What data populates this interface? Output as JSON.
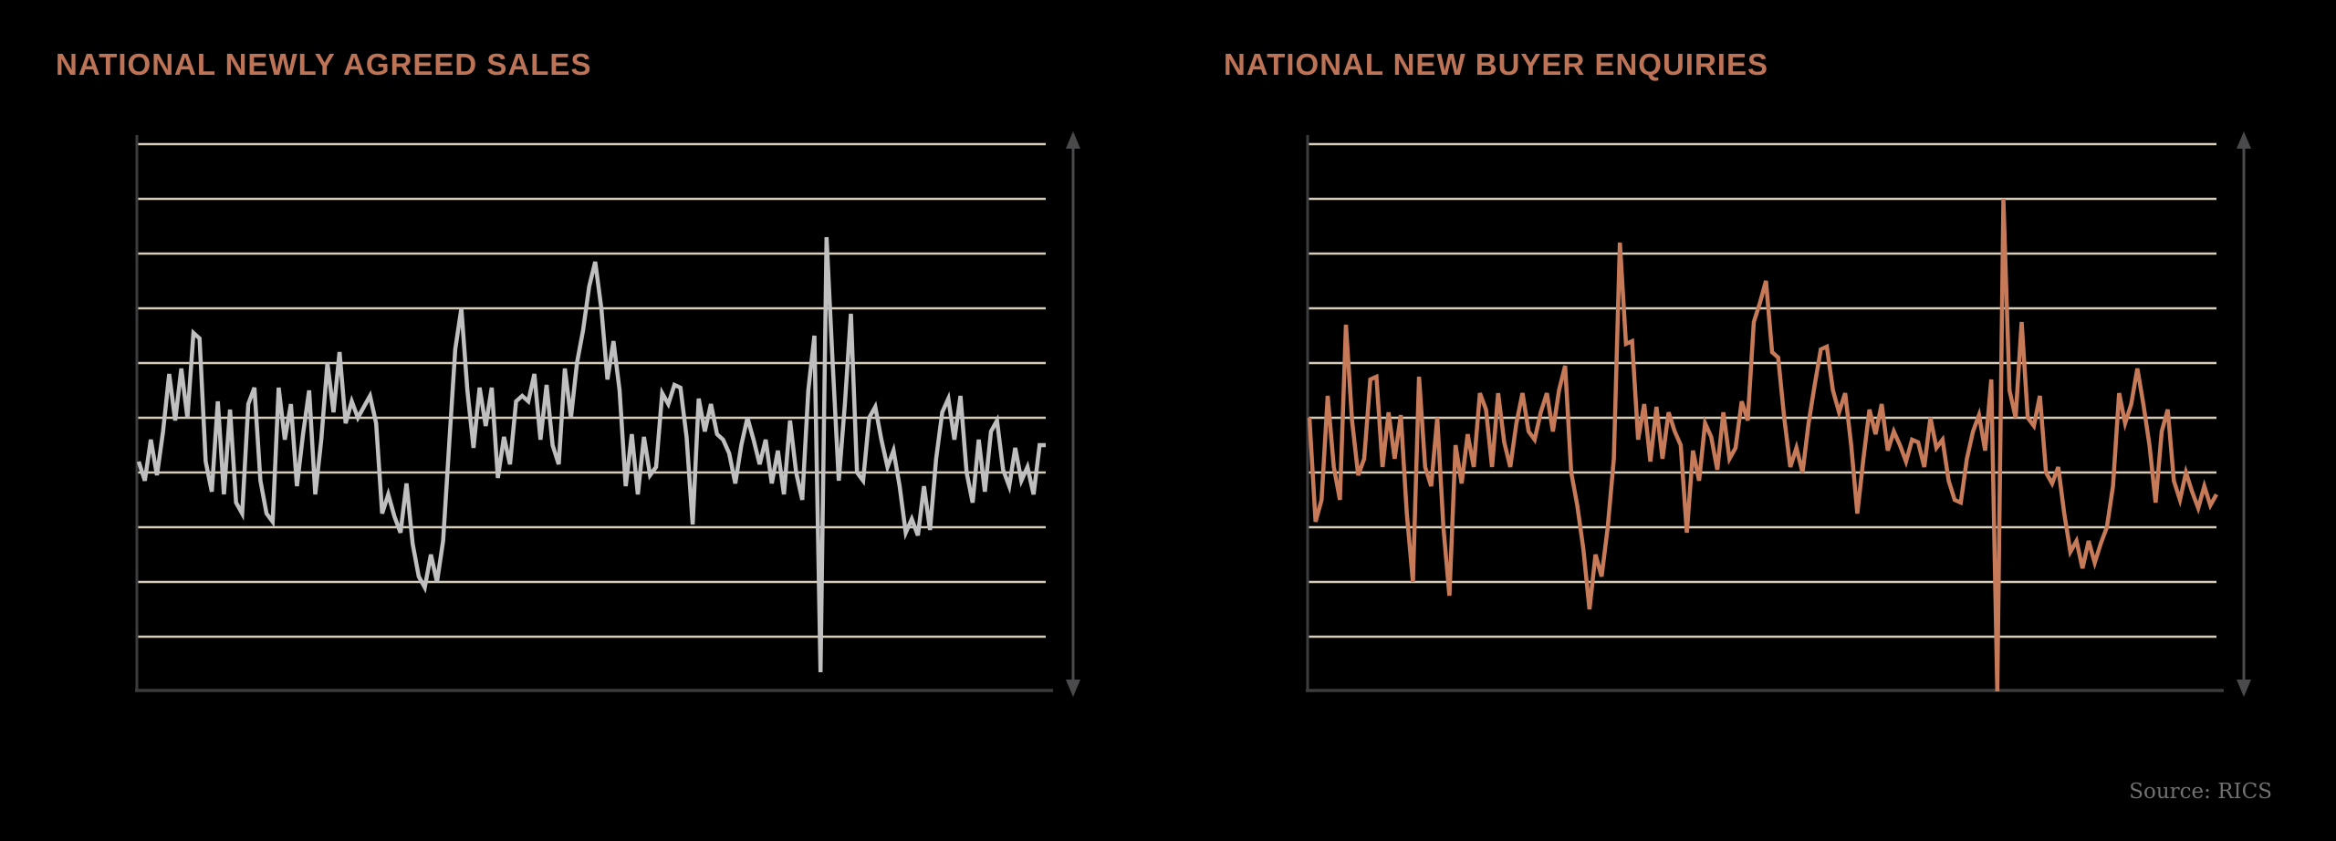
{
  "page": {
    "background": "#000000",
    "source_note": "Source: RICS"
  },
  "colors": {
    "title_text": "#bd7356",
    "gridline": "#d5ccba",
    "axis": "#3c3c3e",
    "arrow": "#4a4a4d",
    "sales_line": "#bfbfbf",
    "enquiries_line": "#c67a58",
    "source_text": "#717171"
  },
  "chart_data": [
    {
      "type": "line",
      "title": "NATIONAL NEWLY AGREED SALES",
      "xlabel": "",
      "ylabel": "",
      "axis_tick_labels_visible": false,
      "legend": "none",
      "grid": "horizontal gridlines only",
      "right_arrow_icon": "double-headed-vertical-arrow",
      "ylim_assumed": [
        -80,
        120
      ],
      "gridline_values_assumed": [
        120,
        100,
        80,
        60,
        40,
        20,
        0,
        -20,
        -40,
        -60
      ],
      "series": [
        {
          "name": "newly-agreed-sales-net-balance",
          "color": "#bfbfbf",
          "values": [
            4,
            -3,
            12,
            -1,
            15,
            36,
            19,
            38,
            20,
            51,
            49,
            4,
            -7,
            26,
            -8,
            23,
            -11,
            -15,
            25,
            31,
            -3,
            -15,
            -18,
            31,
            12,
            25,
            -5,
            14,
            30,
            -8,
            12,
            40,
            22,
            44,
            18,
            26,
            20,
            24,
            28,
            18,
            -15,
            -8,
            -16,
            -22,
            -4,
            -26,
            -38,
            -42,
            -30,
            -40,
            -25,
            10,
            45,
            60,
            30,
            9,
            31,
            17,
            31,
            -2,
            13,
            3,
            26,
            28,
            26,
            36,
            12,
            32,
            10,
            3,
            38,
            20,
            40,
            52,
            68,
            77,
            60,
            34,
            48,
            30,
            -5,
            14,
            -8,
            13,
            -1,
            2,
            29,
            25,
            32,
            31,
            13,
            -19,
            27,
            15,
            25,
            14,
            12,
            7,
            -4,
            10,
            20,
            12,
            3,
            12,
            -4,
            8,
            -8,
            19,
            0,
            -10,
            30,
            50,
            -73,
            86,
            40,
            -3,
            25,
            58,
            0,
            -3,
            20,
            24,
            12,
            2,
            8,
            -5,
            -22,
            -17,
            -23,
            -5,
            -21,
            5,
            22,
            27,
            12,
            28,
            0,
            -11,
            12,
            -7,
            15,
            19,
            1,
            -5,
            9,
            -3,
            2,
            -8,
            10,
            10
          ]
        }
      ]
    },
    {
      "type": "line",
      "title": "NATIONAL NEW BUYER ENQUIRIES",
      "xlabel": "",
      "ylabel": "",
      "axis_tick_labels_visible": false,
      "legend": "none",
      "grid": "horizontal gridlines only",
      "right_arrow_icon": "double-headed-vertical-arrow",
      "ylim_assumed": [
        -80,
        120
      ],
      "gridline_values_assumed": [
        120,
        100,
        80,
        60,
        40,
        20,
        0,
        -20,
        -40,
        -60
      ],
      "series": [
        {
          "name": "new-buyer-enquiries-net-balance",
          "color": "#c67a58",
          "values": [
            20,
            -18,
            -10,
            28,
            2,
            -10,
            54,
            19,
            -1,
            5,
            34,
            35,
            2,
            22,
            5,
            21,
            -15,
            -40,
            35,
            2,
            -5,
            20,
            -20,
            -45,
            10,
            -4,
            14,
            2,
            29,
            23,
            2,
            29,
            11,
            2,
            18,
            29,
            15,
            12,
            22,
            29,
            15,
            30,
            39,
            0,
            -12,
            -28,
            -50,
            -30,
            -38,
            -20,
            5,
            84,
            47,
            48,
            12,
            25,
            4,
            24,
            5,
            22,
            15,
            10,
            -22,
            8,
            -3,
            18,
            13,
            1,
            22,
            5,
            9,
            26,
            19,
            55,
            62,
            70,
            44,
            42,
            20,
            2,
            9,
            0,
            18,
            32,
            45,
            46,
            30,
            22,
            29,
            10,
            -15,
            5,
            23,
            14,
            25,
            8,
            15,
            10,
            4,
            12,
            11,
            2,
            20,
            9,
            12,
            -3,
            -10,
            -11,
            5,
            15,
            21,
            8,
            34,
            -80,
            100,
            30,
            20,
            55,
            20,
            17,
            28,
            0,
            -4,
            2,
            -15,
            -29,
            -25,
            -35,
            -25,
            -33,
            -26,
            -20,
            -5,
            29,
            18,
            25,
            38,
            25,
            10,
            -11,
            15,
            23,
            -3,
            -10,
            0,
            -7,
            -13,
            -5,
            -12,
            -8
          ]
        }
      ]
    }
  ]
}
